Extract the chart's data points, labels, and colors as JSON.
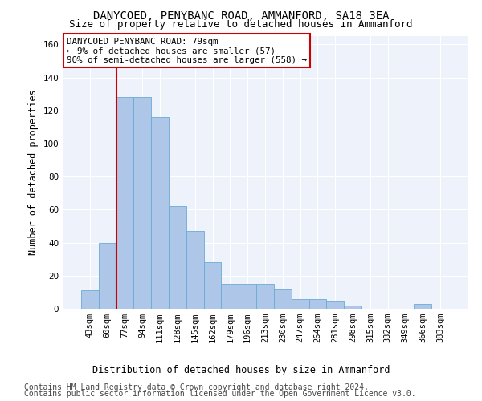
{
  "title_line1": "DANYCOED, PENYBANC ROAD, AMMANFORD, SA18 3EA",
  "title_line2": "Size of property relative to detached houses in Ammanford",
  "xlabel": "Distribution of detached houses by size in Ammanford",
  "ylabel": "Number of detached properties",
  "footer_line1": "Contains HM Land Registry data © Crown copyright and database right 2024.",
  "footer_line2": "Contains public sector information licensed under the Open Government Licence v3.0.",
  "categories": [
    "43sqm",
    "60sqm",
    "77sqm",
    "94sqm",
    "111sqm",
    "128sqm",
    "145sqm",
    "162sqm",
    "179sqm",
    "196sqm",
    "213sqm",
    "230sqm",
    "247sqm",
    "264sqm",
    "281sqm",
    "298sqm",
    "315sqm",
    "332sqm",
    "349sqm",
    "366sqm",
    "383sqm"
  ],
  "values": [
    11,
    40,
    128,
    128,
    116,
    62,
    47,
    28,
    15,
    15,
    15,
    12,
    6,
    6,
    5,
    2,
    0,
    0,
    0,
    3,
    0
  ],
  "bar_color": "#aec6e8",
  "bar_edge_color": "#6aaad4",
  "annotation_box_text": "DANYCOED PENYBANC ROAD: 79sqm\n← 9% of detached houses are smaller (57)\n90% of semi-detached houses are larger (558) →",
  "vline_x": 1.5,
  "vline_color": "#cc0000",
  "ylim": [
    0,
    165
  ],
  "yticks": [
    0,
    20,
    40,
    60,
    80,
    100,
    120,
    140,
    160
  ],
  "background_color": "#eef2fb",
  "grid_color": "#ffffff",
  "annotation_fontsize": 7.8,
  "title1_fontsize": 10,
  "title2_fontsize": 9,
  "xlabel_fontsize": 8.5,
  "ylabel_fontsize": 8.5,
  "footer_fontsize": 7,
  "tick_fontsize": 7.5
}
